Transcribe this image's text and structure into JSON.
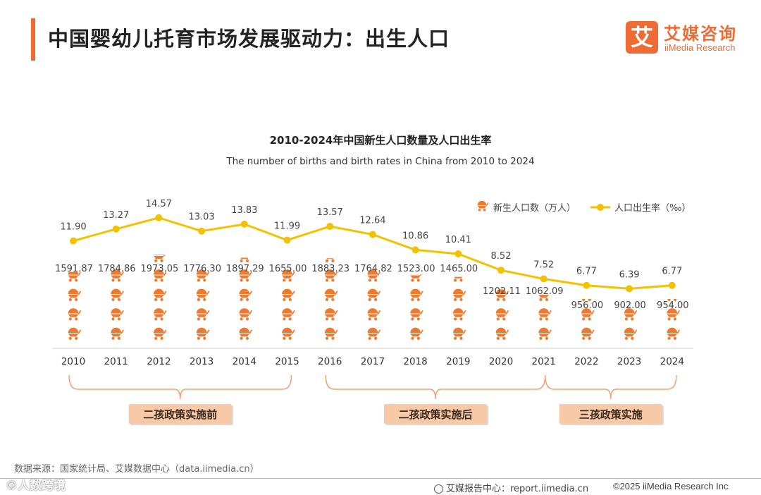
{
  "header": {
    "title": "中国婴幼儿托育市场发展驱动力：出生人口",
    "logo_mark": "艾",
    "logo_cn": "艾媒咨询",
    "logo_en": "iiMedia Research"
  },
  "colors": {
    "accent": "#ef6b34",
    "line": "#f2c200",
    "bracket": "#f0a070"
  },
  "chart_data": {
    "type": "bar+line",
    "title": "2010-2024年中国新生人口数量及人口出生率",
    "subtitle": "The number of births and birth rates in China from 2010 to 2024",
    "categories": [
      "2010",
      "2011",
      "2012",
      "2013",
      "2014",
      "2015",
      "2016",
      "2017",
      "2018",
      "2019",
      "2020",
      "2021",
      "2022",
      "2023",
      "2024"
    ],
    "series": [
      {
        "name": "新生人口数（万人）",
        "kind": "pictograph-bar",
        "values": [
          1591.87,
          1784.86,
          1973.05,
          1776.3,
          1897.29,
          1655.0,
          1883.23,
          1764.82,
          1523.0,
          1465.0,
          1202.11,
          1062.09,
          956.0,
          902.0,
          954.0
        ],
        "labels": [
          "1591.87",
          "1784.86",
          "1973.05",
          "1776.30",
          "1897.29",
          "1655.00",
          "1883.23",
          "1764.82",
          "1523.00",
          "1465.00",
          "1202.11",
          "1062.09",
          "956.00",
          "902.00",
          "954.00"
        ]
      },
      {
        "name": "人口出生率（‰）",
        "kind": "line",
        "values": [
          11.9,
          13.27,
          14.57,
          13.03,
          13.83,
          11.99,
          13.57,
          12.64,
          10.86,
          10.41,
          8.52,
          7.52,
          6.77,
          6.39,
          6.77
        ],
        "labels": [
          "11.90",
          "13.27",
          "14.57",
          "13.03",
          "13.83",
          "11.99",
          "13.57",
          "12.64",
          "10.86",
          "10.41",
          "8.52",
          "7.52",
          "6.77",
          "6.39",
          "6.77"
        ]
      }
    ],
    "legend": {
      "placement": "top-right"
    },
    "grid": false,
    "periods": [
      {
        "label": "二孩政策实施前",
        "from": "2010",
        "to": "2015"
      },
      {
        "label": "二孩政策实施后",
        "from": "2016",
        "to": "2021"
      },
      {
        "label": "三孩政策实施",
        "from": "2021",
        "to": "2024"
      }
    ]
  },
  "footer": {
    "source": "数据来源：国家统计局、艾媒数据中心（data.iimedia.cn）",
    "watermark": "©人数跨境",
    "report_center": "艾媒报告中心：report.iimedia.cn",
    "copyright": "©2025  iiMedia Research  Inc"
  }
}
